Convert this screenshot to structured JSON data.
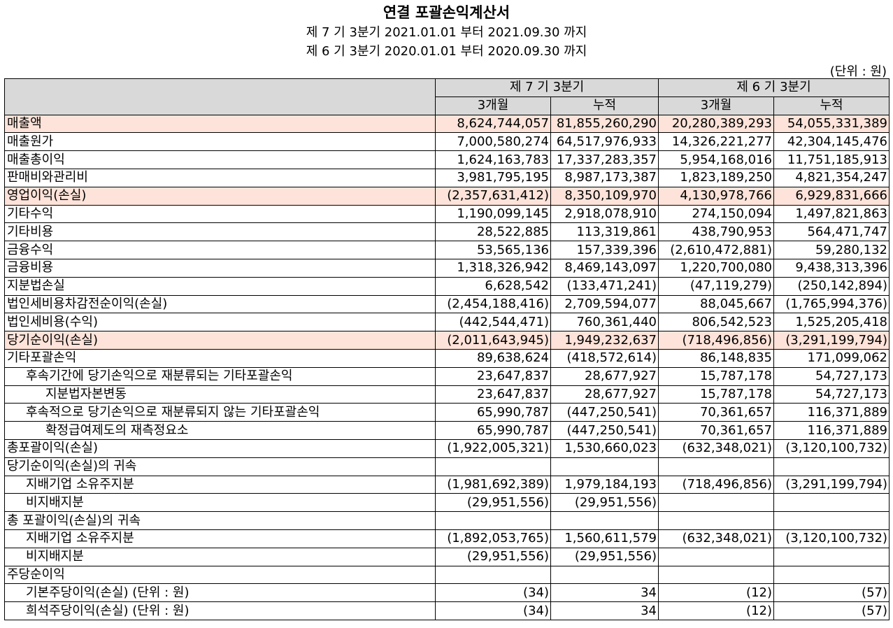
{
  "title": "연결 포괄손익계산서",
  "subtitle1": "제 7 기 3분기 2021.01.01 부터 2021.09.30 까지",
  "subtitle2": "제 6 기 3분기 2020.01.01 부터 2020.09.30 까지",
  "unit": "(단위 : 원)",
  "header": {
    "period1": "제 7 기 3분기",
    "period2": "제 6 기 3분기",
    "col_3m": "3개월",
    "col_cum": "누적"
  },
  "rows": [
    {
      "label": "매출액",
      "indent": 0,
      "highlight": true,
      "v": [
        "8,624,744,057",
        "81,855,260,290",
        "20,280,389,293",
        "54,055,331,389"
      ]
    },
    {
      "label": "매출원가",
      "indent": 0,
      "highlight": false,
      "v": [
        "7,000,580,274",
        "64,517,976,933",
        "14,326,221,277",
        "42,304,145,476"
      ]
    },
    {
      "label": "매출총이익",
      "indent": 0,
      "highlight": false,
      "v": [
        "1,624,163,783",
        "17,337,283,357",
        "5,954,168,016",
        "11,751,185,913"
      ]
    },
    {
      "label": "판매비와관리비",
      "indent": 0,
      "highlight": false,
      "v": [
        "3,981,795,195",
        "8,987,173,387",
        "1,823,189,250",
        "4,821,354,247"
      ]
    },
    {
      "label": "영업이익(손실)",
      "indent": 0,
      "highlight": true,
      "v": [
        "(2,357,631,412)",
        "8,350,109,970",
        "4,130,978,766",
        "6,929,831,666"
      ]
    },
    {
      "label": "기타수익",
      "indent": 0,
      "highlight": false,
      "v": [
        "1,190,099,145",
        "2,918,078,910",
        "274,150,094",
        "1,497,821,863"
      ]
    },
    {
      "label": "기타비용",
      "indent": 0,
      "highlight": false,
      "v": [
        "28,522,885",
        "113,319,861",
        "438,790,953",
        "564,471,747"
      ]
    },
    {
      "label": "금융수익",
      "indent": 0,
      "highlight": false,
      "v": [
        "53,565,136",
        "157,339,396",
        "(2,610,472,881)",
        "59,280,132"
      ]
    },
    {
      "label": "금융비용",
      "indent": 0,
      "highlight": false,
      "v": [
        "1,318,326,942",
        "8,469,143,097",
        "1,220,700,080",
        "9,438,313,396"
      ]
    },
    {
      "label": "지분법손실",
      "indent": 0,
      "highlight": false,
      "v": [
        "6,628,542",
        "(133,471,241)",
        "(47,119,279)",
        "(250,142,894)"
      ]
    },
    {
      "label": "법인세비용차감전순이익(손실)",
      "indent": 0,
      "highlight": false,
      "v": [
        "(2,454,188,416)",
        "2,709,594,077",
        "88,045,667",
        "(1,765,994,376)"
      ]
    },
    {
      "label": "법인세비용(수익)",
      "indent": 0,
      "highlight": false,
      "v": [
        "(442,544,471)",
        "760,361,440",
        "806,542,523",
        "1,525,205,418"
      ]
    },
    {
      "label": "당기순이익(손실)",
      "indent": 0,
      "highlight": true,
      "v": [
        "(2,011,643,945)",
        "1,949,232,637",
        "(718,496,856)",
        "(3,291,199,794)"
      ]
    },
    {
      "label": "기타포괄손익",
      "indent": 0,
      "highlight": false,
      "v": [
        "89,638,624",
        "(418,572,614)",
        "86,148,835",
        "171,099,062"
      ]
    },
    {
      "label": "후속기간에 당기손익으로 재분류되는 기타포괄손익",
      "indent": 1,
      "highlight": false,
      "v": [
        "23,647,837",
        "28,677,927",
        "15,787,178",
        "54,727,173"
      ]
    },
    {
      "label": "지분법자본변동",
      "indent": 2,
      "highlight": false,
      "v": [
        "23,647,837",
        "28,677,927",
        "15,787,178",
        "54,727,173"
      ]
    },
    {
      "label": "후속적으로 당기손익으로 재분류되지 않는 기타포괄손익",
      "indent": 1,
      "highlight": false,
      "v": [
        "65,990,787",
        "(447,250,541)",
        "70,361,657",
        "116,371,889"
      ]
    },
    {
      "label": "확정급여제도의 재측정요소",
      "indent": 2,
      "highlight": false,
      "v": [
        "65,990,787",
        "(447,250,541)",
        "70,361,657",
        "116,371,889"
      ]
    },
    {
      "label": "총포괄이익(손실)",
      "indent": 0,
      "highlight": false,
      "v": [
        "(1,922,005,321)",
        "1,530,660,023",
        "(632,348,021)",
        "(3,120,100,732)"
      ]
    },
    {
      "label": "당기순이익(손실)의 귀속",
      "indent": 0,
      "highlight": false,
      "v": [
        "",
        "",
        "",
        ""
      ]
    },
    {
      "label": "지배기업 소유주지분",
      "indent": 1,
      "highlight": false,
      "v": [
        "(1,981,692,389)",
        "1,979,184,193",
        "(718,496,856)",
        "(3,291,199,794)"
      ]
    },
    {
      "label": "비지배지분",
      "indent": 1,
      "highlight": false,
      "v": [
        "(29,951,556)",
        "(29,951,556)",
        "",
        ""
      ]
    },
    {
      "label": "총 포괄이익(손실)의 귀속",
      "indent": 0,
      "highlight": false,
      "v": [
        "",
        "",
        "",
        ""
      ]
    },
    {
      "label": "지배기업 소유주지분",
      "indent": 1,
      "highlight": false,
      "v": [
        "(1,892,053,765)",
        "1,560,611,579",
        "(632,348,021)",
        "(3,120,100,732)"
      ]
    },
    {
      "label": "비지배지분",
      "indent": 1,
      "highlight": false,
      "v": [
        "(29,951,556)",
        "(29,951,556)",
        "",
        ""
      ]
    },
    {
      "label": "주당순이익",
      "indent": 0,
      "highlight": false,
      "v": [
        "",
        "",
        "",
        ""
      ]
    },
    {
      "label": "기본주당이익(손실) (단위 : 원)",
      "indent": 1,
      "highlight": false,
      "v": [
        "(34)",
        "34",
        "(12)",
        "(57)"
      ]
    },
    {
      "label": "희석주당이익(손실) (단위 : 원)",
      "indent": 1,
      "highlight": false,
      "v": [
        "(34)",
        "34",
        "(12)",
        "(57)"
      ]
    }
  ]
}
